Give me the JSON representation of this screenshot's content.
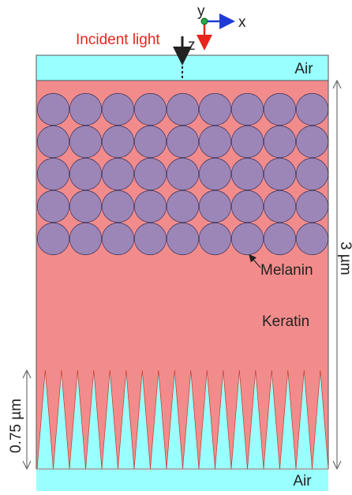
{
  "labels": {
    "incident_light": "Incident light",
    "axis_x": "x",
    "axis_y": "y",
    "axis_z": "z",
    "air_top": "Air",
    "air_bottom": "Air",
    "melanin": "Melanin",
    "keratin": "Keratin",
    "total_thickness": "3 µm",
    "spike_height": "0.75 µm"
  },
  "structure": {
    "melanin_rows": 5,
    "melanin_columns": 9,
    "cone_count": 18
  },
  "colors": {
    "air": "#99ffff",
    "keratin": "#f28c8c",
    "melanin": "#9c86b8",
    "incident_label": "#e8251c",
    "x_axis": "#1f3bd6",
    "z_axis": "#e8251c",
    "arrow": "#222222"
  }
}
